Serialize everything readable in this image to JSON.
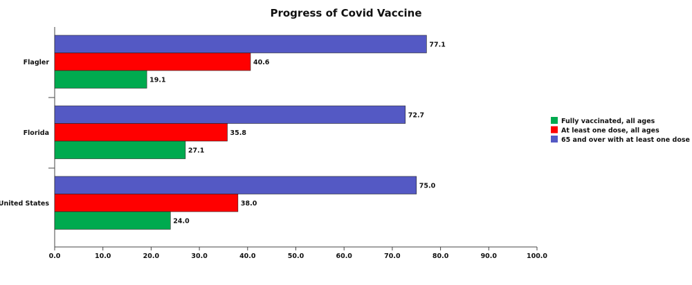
{
  "chart_data": {
    "type": "bar",
    "orientation": "horizontal",
    "title": "Progress of Covid Vaccine",
    "categories": [
      "Flagler",
      "Florida",
      "United States"
    ],
    "series": [
      {
        "name": "65 and over with at least one dose",
        "color": "#5459c4",
        "values": [
          77.1,
          72.7,
          75.0
        ]
      },
      {
        "name": "At least one dose, all ages",
        "color": "#ff0000",
        "values": [
          40.6,
          35.8,
          38.0
        ]
      },
      {
        "name": "Fully vaccinated, all ages",
        "color": "#00aa4f",
        "values": [
          19.1,
          27.1,
          24.0
        ]
      }
    ],
    "legend_order": [
      "Fully vaccinated, all ages",
      "At least one dose, all ages",
      "65 and over with at least one dose"
    ],
    "data_labels": [
      [
        "77.1",
        "40.6",
        "19.1"
      ],
      [
        "72.7",
        "35.8",
        "27.1"
      ],
      [
        "75.0",
        "38.0",
        "24.0"
      ]
    ],
    "xlim": [
      0,
      100
    ],
    "xticks": [
      "0.0",
      "10.0",
      "20.0",
      "30.0",
      "40.0",
      "50.0",
      "60.0",
      "70.0",
      "80.0",
      "90.0",
      "100.0"
    ],
    "xlabel": "",
    "ylabel": "",
    "grid": false,
    "legend_position": "right"
  }
}
